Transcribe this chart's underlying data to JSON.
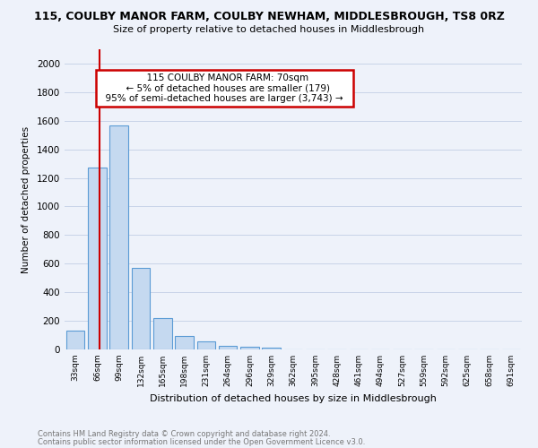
{
  "title_line1": "115, COULBY MANOR FARM, COULBY NEWHAM, MIDDLESBROUGH, TS8 0RZ",
  "title_line2": "Size of property relative to detached houses in Middlesbrough",
  "xlabel": "Distribution of detached houses by size in Middlesbrough",
  "ylabel": "Number of detached properties",
  "footnote1": "Contains HM Land Registry data © Crown copyright and database right 2024.",
  "footnote2": "Contains public sector information licensed under the Open Government Licence v3.0.",
  "annotation_title": "115 COULBY MANOR FARM: 70sqm",
  "annotation_line1": "← 5% of detached houses are smaller (179)",
  "annotation_line2": "95% of semi-detached houses are larger (3,743) →",
  "categories": [
    "33sqm",
    "66sqm",
    "99sqm",
    "132sqm",
    "165sqm",
    "198sqm",
    "231sqm",
    "264sqm",
    "296sqm",
    "329sqm",
    "362sqm",
    "395sqm",
    "428sqm",
    "461sqm",
    "494sqm",
    "527sqm",
    "559sqm",
    "592sqm",
    "625sqm",
    "658sqm",
    "691sqm"
  ],
  "values": [
    130,
    1270,
    1570,
    570,
    220,
    95,
    55,
    25,
    18,
    15,
    0,
    0,
    0,
    0,
    0,
    0,
    0,
    0,
    0,
    0,
    0
  ],
  "bar_color": "#c5d9f0",
  "bar_edge_color": "#5b9bd5",
  "annotation_box_color": "#ffffff",
  "annotation_box_edge": "#cc0000",
  "vline_color": "#cc0000",
  "grid_color": "#c8d4e8",
  "background_color": "#eef2fa",
  "ylim": [
    0,
    2100
  ],
  "yticks": [
    0,
    200,
    400,
    600,
    800,
    1000,
    1200,
    1400,
    1600,
    1800,
    2000
  ],
  "vline_pos": 1.12
}
